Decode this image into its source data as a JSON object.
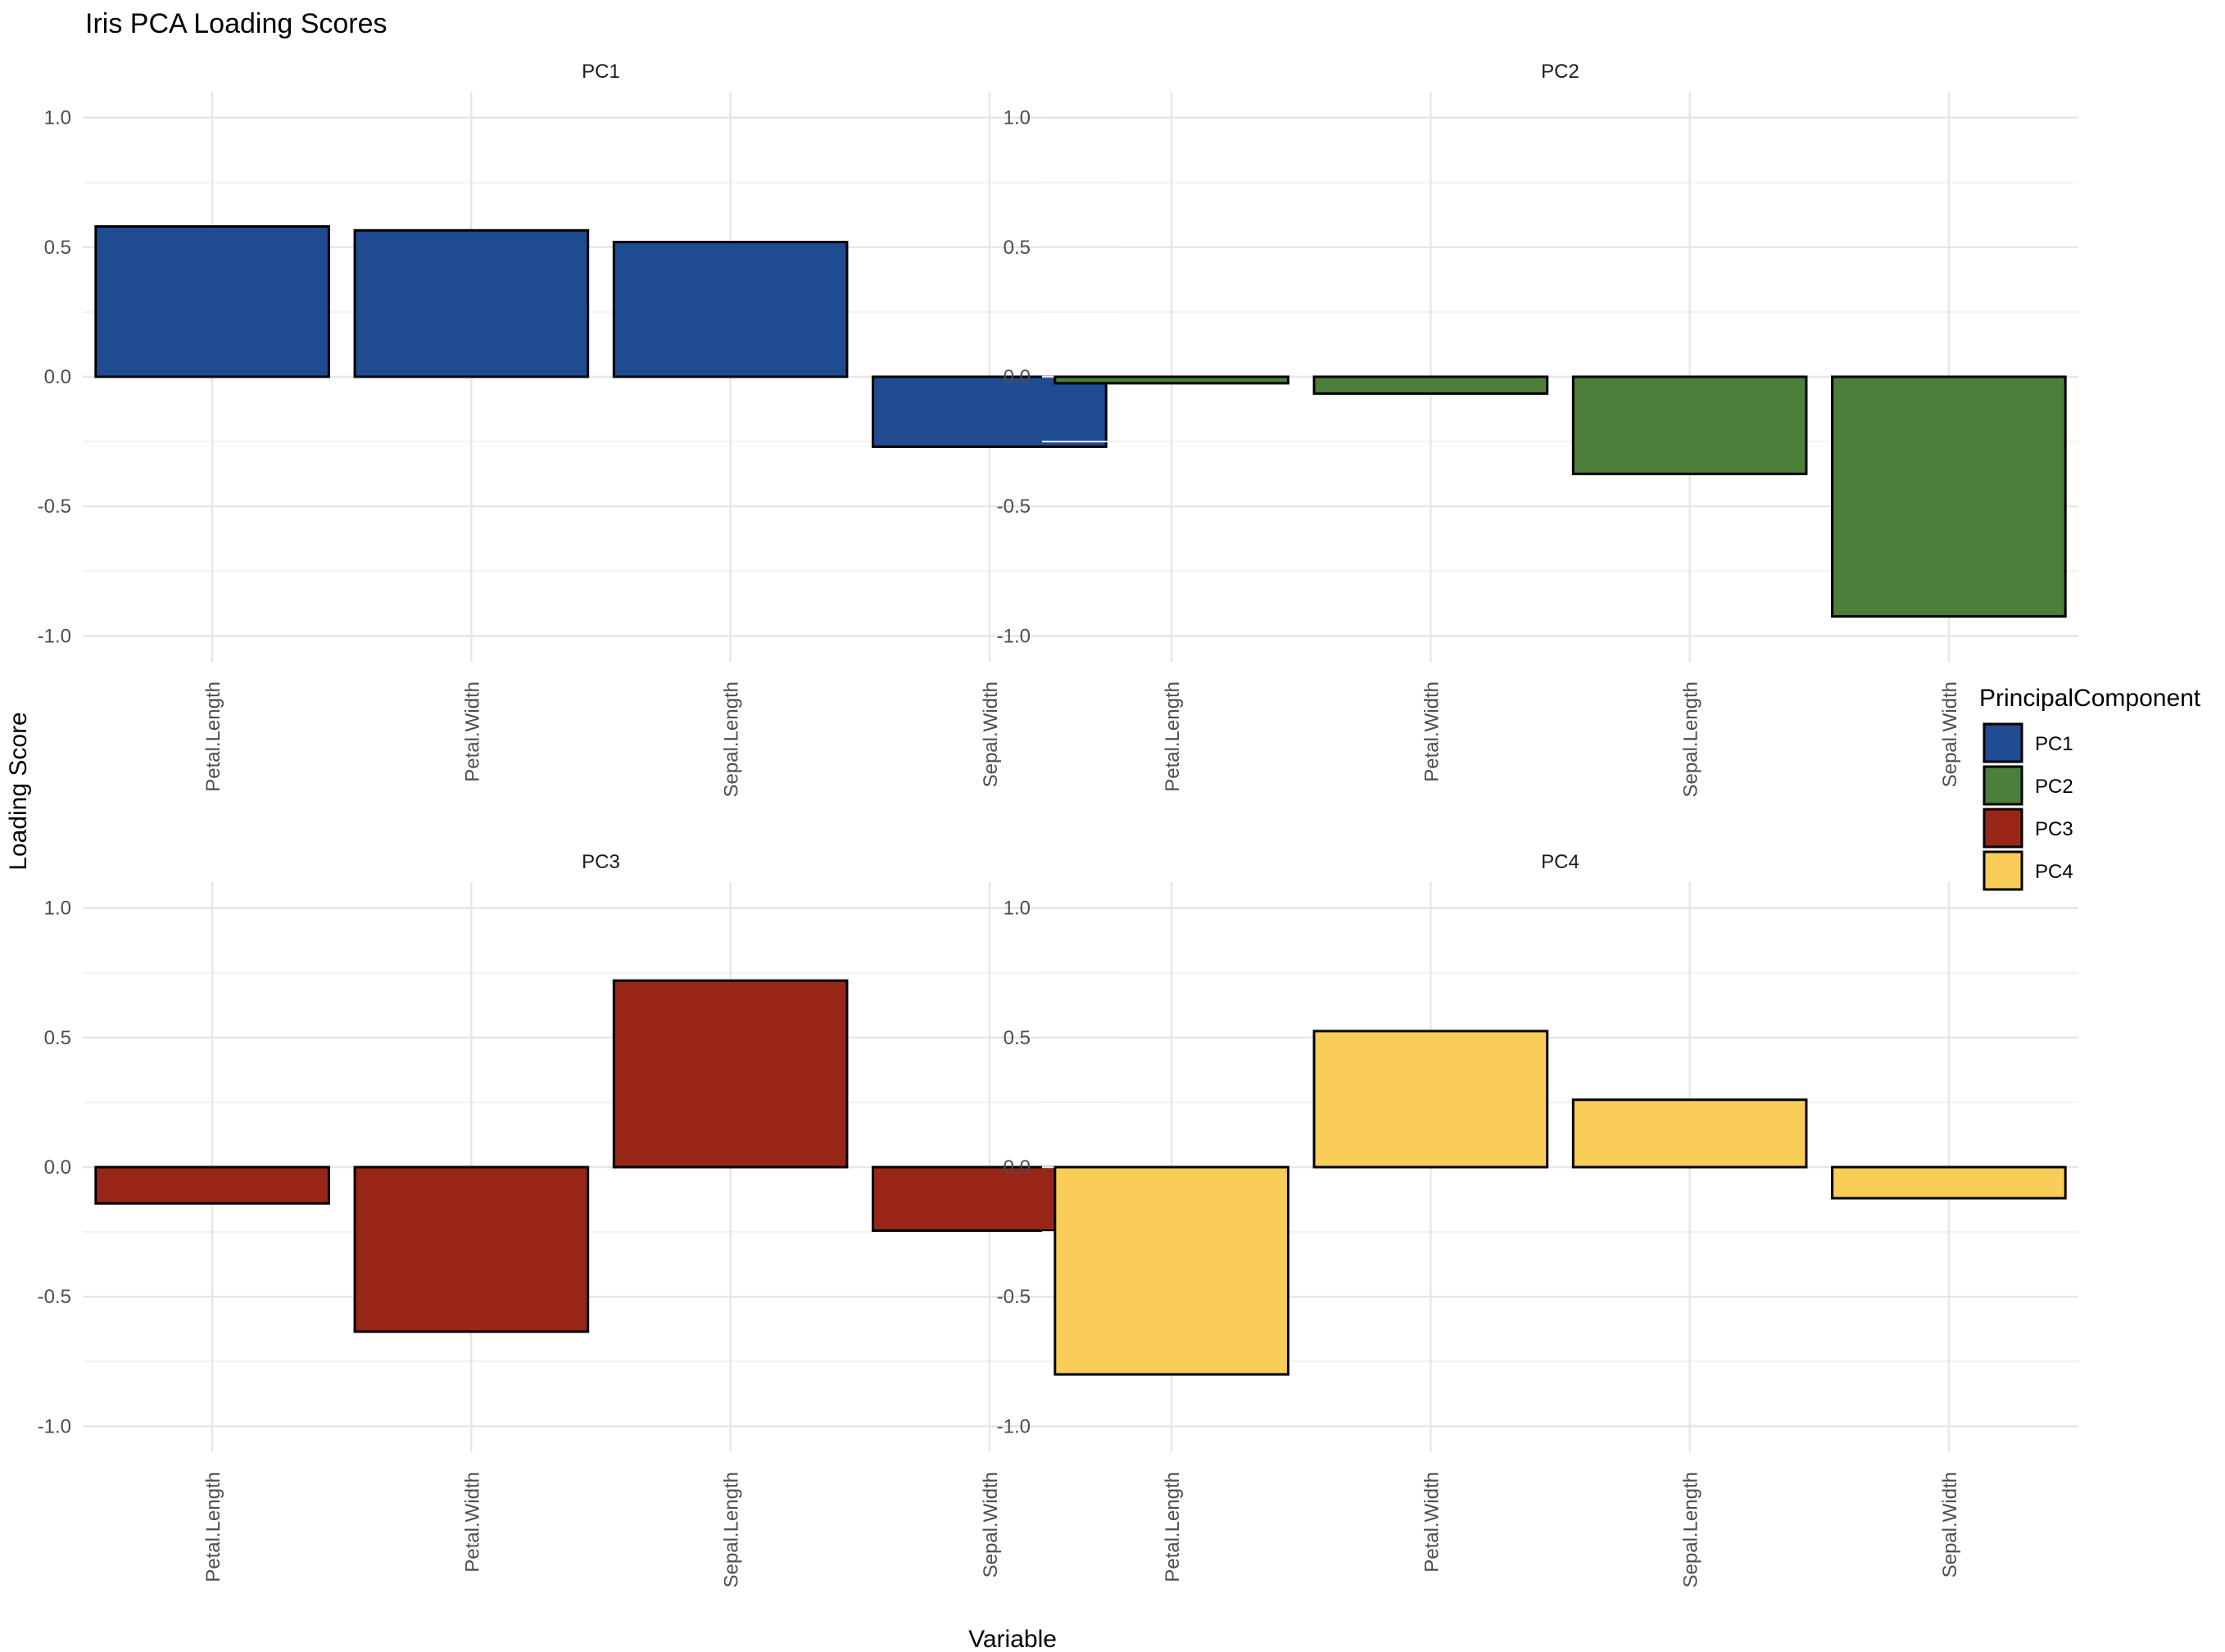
{
  "chart_data": {
    "type": "bar",
    "title": "Iris PCA Loading Scores",
    "xlabel": "Variable",
    "ylabel": "Loading Score",
    "ylim": [
      -1.0,
      1.0
    ],
    "yticks": [
      "1.0",
      "0.5",
      "0.0",
      "-0.5",
      "-1.0"
    ],
    "ytick_values": [
      1.0,
      0.5,
      0.0,
      -0.5,
      -1.0
    ],
    "grid": true,
    "layout": "2x2 facets",
    "categories": [
      "Petal.Length",
      "Petal.Width",
      "Sepal.Length",
      "Sepal.Width"
    ],
    "legend": {
      "title": "PrincipalComponent",
      "position": "right"
    },
    "series": [
      {
        "name": "PC1",
        "color": "#1f4b91",
        "values": [
          0.58,
          0.565,
          0.52,
          -0.27
        ]
      },
      {
        "name": "PC2",
        "color": "#4b7f3a",
        "values": [
          -0.025,
          -0.065,
          -0.375,
          -0.925
        ]
      },
      {
        "name": "PC3",
        "color": "#982616",
        "values": [
          -0.14,
          -0.635,
          0.72,
          -0.245
        ]
      },
      {
        "name": "PC4",
        "color": "#f8cd58",
        "values": [
          -0.8,
          0.525,
          0.26,
          -0.12
        ]
      }
    ]
  }
}
